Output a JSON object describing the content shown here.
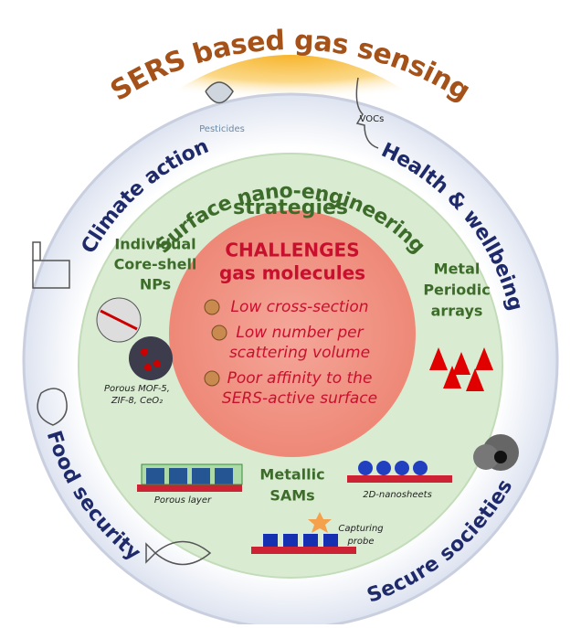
{
  "title": "SERS based gas sensing",
  "ring": {
    "top_left": "Climate action",
    "top_right": "Health & wellbeing",
    "bottom_left": "Food security",
    "bottom_right": "Secure societies"
  },
  "icons": {
    "pesticides": "Pesticides",
    "vocs": "VOCs"
  },
  "strategies": {
    "title": [
      "Surface nano-engineering",
      "strategies"
    ],
    "left": [
      "Individual",
      "Core-shell",
      "NPs"
    ],
    "left_note": [
      "Porous MOF-5,",
      "ZIF-8, CeO₂"
    ],
    "right": [
      "Metal",
      "Periodic",
      "arrays"
    ],
    "bottom": [
      "Metallic",
      "SAMs"
    ],
    "porous_layer": "Porous layer",
    "nanosheets": "2D-nanosheets",
    "capturing_probe": [
      "Capturing",
      "probe"
    ]
  },
  "challenges": {
    "title": "CHALLENGES",
    "subtitle": "gas molecules",
    "items": [
      [
        "Low cross-section"
      ],
      [
        "Low number per",
        "scattering volume"
      ],
      [
        "Poor affinity to the",
        "SERS-active surface"
      ]
    ]
  }
}
